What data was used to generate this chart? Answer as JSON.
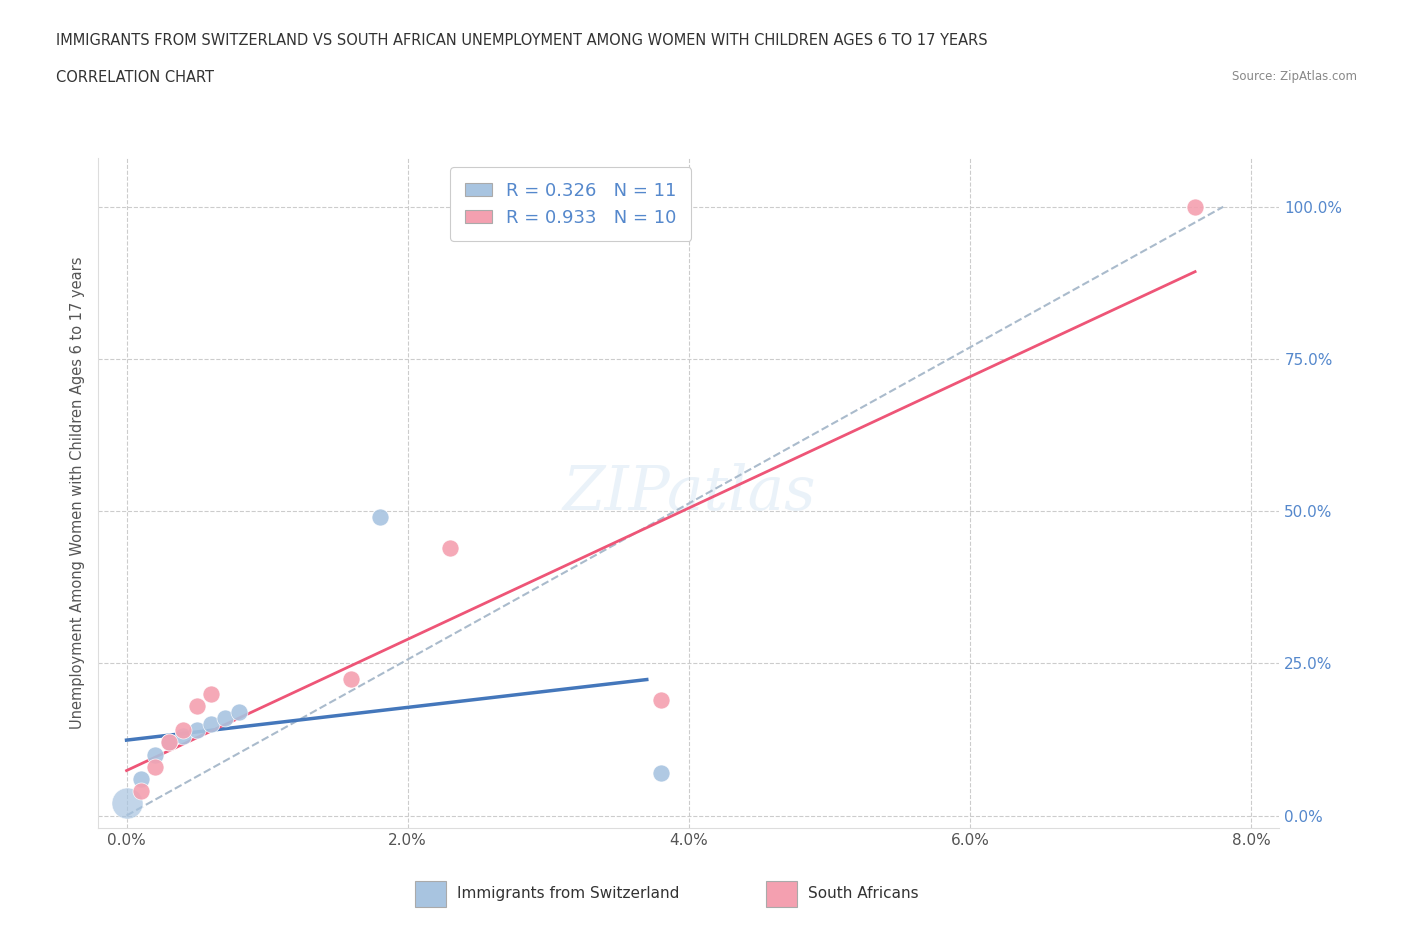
{
  "title_line1": "IMMIGRANTS FROM SWITZERLAND VS SOUTH AFRICAN UNEMPLOYMENT AMONG WOMEN WITH CHILDREN AGES 6 TO 17 YEARS",
  "title_line2": "CORRELATION CHART",
  "source_text": "Source: ZipAtlas.com",
  "ylabel": "Unemployment Among Women with Children Ages 6 to 17 years",
  "x_tick_labels": [
    "0.0%",
    "2.0%",
    "4.0%",
    "6.0%",
    "8.0%"
  ],
  "x_tick_values": [
    0.0,
    0.02,
    0.04,
    0.06,
    0.08
  ],
  "y_tick_labels_right": [
    "100.0%",
    "75.0%",
    "50.0%",
    "25.0%",
    "0.0%"
  ],
  "y_tick_values": [
    0.0,
    0.25,
    0.5,
    0.75,
    1.0
  ],
  "xlim": [
    -0.002,
    0.082
  ],
  "ylim": [
    -0.02,
    1.08
  ],
  "blue_scatter_x": [
    0.0,
    0.001,
    0.002,
    0.003,
    0.004,
    0.005,
    0.006,
    0.007,
    0.008,
    0.018,
    0.038
  ],
  "blue_scatter_y": [
    0.02,
    0.06,
    0.1,
    0.12,
    0.13,
    0.14,
    0.15,
    0.16,
    0.17,
    0.49,
    0.07
  ],
  "pink_scatter_x": [
    0.001,
    0.002,
    0.003,
    0.004,
    0.005,
    0.006,
    0.016,
    0.023,
    0.038,
    0.076
  ],
  "pink_scatter_y": [
    0.04,
    0.08,
    0.12,
    0.14,
    0.18,
    0.2,
    0.225,
    0.44,
    0.19,
    1.0
  ],
  "blue_R": 0.326,
  "blue_N": 11,
  "pink_R": 0.933,
  "pink_N": 10,
  "blue_scatter_color": "#a8c4e0",
  "pink_scatter_color": "#f4a0b0",
  "blue_line_color": "#4477bb",
  "pink_line_color": "#ee5577",
  "gray_dashed_color": "#aabbcc",
  "legend_label_blue": "Immigrants from Switzerland",
  "legend_label_pink": "South Africans",
  "watermark": "ZIPatlas",
  "background_color": "#ffffff",
  "grid_color": "#cccccc",
  "title_color": "#333333",
  "axis_label_color": "#333333",
  "tick_color_right": "#5588cc",
  "dot_size": 150,
  "large_dot_size": 500
}
